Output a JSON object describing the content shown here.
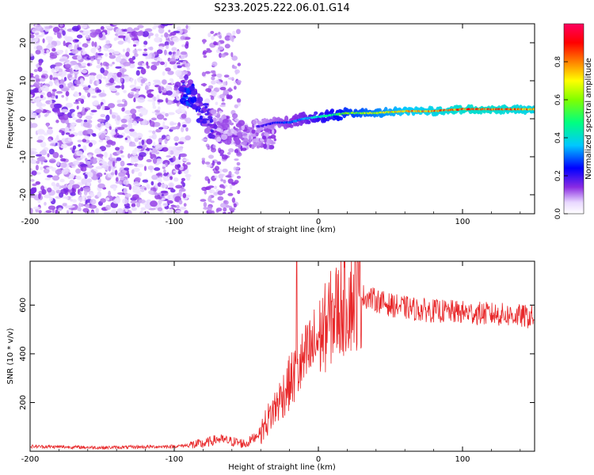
{
  "title": "S233.2025.222.06.01.G14",
  "chart_data": [
    {
      "type": "heatmap",
      "name": "spectrogram",
      "xlabel": "Height of straight line (km)",
      "ylabel": "Frequency (Hz)",
      "xlim": [
        -200,
        150
      ],
      "ylim": [
        -25,
        25
      ],
      "xticks": [
        -200,
        -100,
        0,
        100
      ],
      "yticks": [
        -20,
        -10,
        0,
        10,
        20
      ],
      "colorbar": {
        "label": "Normalized spectral amplitude",
        "range": [
          0,
          1
        ],
        "ticks": [
          "0.0",
          "0.2",
          "0.4",
          "0.6",
          "0.8"
        ],
        "tick_values": [
          0.0,
          0.2,
          0.4,
          0.6,
          0.8
        ]
      },
      "tone_track": {
        "x": [
          -40,
          -30,
          -20,
          -10,
          0,
          10,
          20,
          40,
          60,
          80,
          100,
          120,
          150
        ],
        "freq": [
          -2,
          -1,
          -1,
          0,
          0.5,
          1,
          1.5,
          1.5,
          2,
          2,
          2.5,
          2.5,
          2.5
        ],
        "amplitude": [
          0.2,
          0.25,
          0.3,
          0.35,
          0.45,
          0.5,
          0.6,
          0.7,
          0.8,
          0.85,
          0.9,
          0.9,
          0.85
        ]
      },
      "scatter_track": {
        "x": [
          -90,
          -85,
          -80,
          -75,
          -70,
          -65,
          -60,
          -55,
          -50,
          -45
        ],
        "freq": [
          7,
          4,
          1,
          -1,
          -2,
          -3,
          -3,
          -4,
          -5,
          -4
        ],
        "amplitude": [
          0.2,
          0.15,
          0.15,
          0.15,
          0.1,
          0.1,
          0.1,
          0.1,
          0.1,
          0.1
        ]
      },
      "noise_region_x": [
        -200,
        -90
      ]
    },
    {
      "type": "line",
      "name": "snr",
      "xlabel": "Height of straight line (km)",
      "ylabel": "SNR (10 * v/v)",
      "xlim": [
        -200,
        150
      ],
      "ylim": [
        0,
        780
      ],
      "xticks": [
        -200,
        -100,
        0,
        100
      ],
      "yticks": [
        200,
        400,
        600
      ],
      "color": "#e8282a",
      "envelope": {
        "x": [
          -200,
          -150,
          -100,
          -80,
          -70,
          -60,
          -50,
          -40,
          -30,
          -20,
          -10,
          0,
          10,
          20,
          30,
          50,
          70,
          100,
          130,
          150
        ],
        "y": [
          20,
          15,
          20,
          30,
          50,
          40,
          30,
          80,
          180,
          280,
          370,
          460,
          560,
          620,
          640,
          600,
          580,
          570,
          560,
          550
        ]
      },
      "spike": {
        "x": -15,
        "y": 780
      }
    }
  ]
}
